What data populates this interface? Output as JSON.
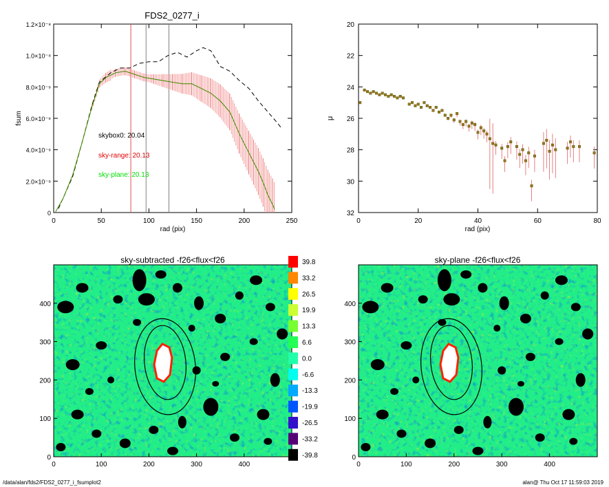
{
  "chart_data": [
    {
      "type": "line",
      "title": "FDS2_0277_i",
      "xlabel": "rad (pix)",
      "ylabel": "fsum",
      "xlim": [
        0,
        250
      ],
      "ylim": [
        0,
        1.2e-08
      ],
      "x_ticks": [
        "0",
        "50",
        "100",
        "150",
        "200",
        "250"
      ],
      "x_tick_values": [
        0,
        50,
        100,
        150,
        200,
        250
      ],
      "y_ticks": [
        "0",
        "2.0×10⁻⁹",
        "4.0×10⁻⁹",
        "6.0×10⁻⁹",
        "8.0×10⁻⁹",
        "1.0×10⁻⁸",
        "1.2×10⁻⁸"
      ],
      "y_tick_values": [
        0,
        2e-09,
        4e-09,
        6e-09,
        8e-09,
        1e-08,
        1.2e-08
      ],
      "vertical_lines": [
        {
          "x": 81,
          "color": "#e05050"
        },
        {
          "x": 97,
          "color": "#808080"
        },
        {
          "x": 121,
          "color": "#808080"
        }
      ],
      "annotations": [
        {
          "text": "skybox0: 20.04",
          "color": "#000000"
        },
        {
          "text": "sky-range: 20.13",
          "color": "#e00000"
        },
        {
          "text": "sky-plane: 20.13",
          "color": "#00dd00"
        }
      ],
      "series": [
        {
          "style": "dashed",
          "color": "#000000",
          "x": [
            5,
            20,
            30,
            40,
            48,
            60,
            70,
            80,
            90,
            100,
            110,
            120,
            130,
            140,
            150,
            157,
            165,
            175,
            185,
            195,
            205,
            215,
            225,
            235,
            240
          ],
          "values": [
            2.5e-10,
            2.3e-09,
            4.5e-09,
            6.8e-09,
            8.3e-09,
            8.9e-09,
            9.2e-09,
            9.2e-09,
            9.5e-09,
            9.6e-09,
            9.6e-09,
            1e-08,
            1.02e-08,
            9.9e-09,
            1.03e-08,
            1.05e-08,
            1.03e-08,
            9.3e-09,
            9e-09,
            8.4e-09,
            7.9e-09,
            7.1e-09,
            6.4e-09,
            5.7e-09,
            5.3e-09
          ]
        },
        {
          "style": "solid",
          "color": "#a06000",
          "x": [
            2,
            10,
            20,
            30,
            40,
            48,
            55,
            65,
            75,
            85,
            95,
            105,
            115,
            125,
            135,
            145,
            155,
            165,
            175,
            185,
            195,
            205,
            210,
            215,
            220,
            225,
            230,
            232
          ],
          "values": [
            5e-11,
            9e-10,
            2.4e-09,
            4.5e-09,
            6.7e-09,
            8.2e-09,
            8.6e-09,
            8.9e-09,
            9e-09,
            8.8e-09,
            8.6e-09,
            8.5e-09,
            8.4e-09,
            8.3e-09,
            8.2e-09,
            8.2e-09,
            7.9e-09,
            7.6e-09,
            7.1e-09,
            6.4e-09,
            5e-09,
            3.8e-09,
            3.2e-09,
            2.6e-09,
            1.9e-09,
            1.1e-09,
            5e-10,
            2e-10
          ]
        }
      ]
    },
    {
      "type": "scatter",
      "xlabel": "rad (pix)",
      "ylabel": "μ",
      "xlim": [
        0,
        80
      ],
      "ylim": [
        32,
        20
      ],
      "x_ticks": [
        "0",
        "20",
        "40",
        "60",
        "80"
      ],
      "x_tick_values": [
        0,
        20,
        40,
        60,
        80
      ],
      "y_ticks": [
        "20",
        "22",
        "24",
        "26",
        "28",
        "30",
        "32"
      ],
      "y_tick_values": [
        20,
        22,
        24,
        26,
        28,
        30,
        32
      ],
      "series": [
        {
          "x": [
            0.5,
            2,
            3,
            4,
            5,
            6,
            7,
            8,
            9,
            10,
            11,
            12,
            13,
            14,
            15,
            17,
            18,
            19,
            20,
            21,
            22,
            23,
            24,
            25,
            26,
            27,
            28,
            29,
            30,
            31,
            32,
            33,
            34,
            35,
            36,
            37,
            38,
            39,
            40,
            41,
            42,
            43,
            44,
            45,
            46,
            48,
            49,
            50,
            51,
            53,
            54,
            55,
            56,
            57,
            58,
            59,
            62,
            63,
            64,
            65,
            66,
            70,
            71,
            72,
            74,
            79
          ],
          "values": [
            25.0,
            24.2,
            24.3,
            24.4,
            24.3,
            24.4,
            24.5,
            24.4,
            24.5,
            24.6,
            24.5,
            24.6,
            24.7,
            24.6,
            24.7,
            25.1,
            25.0,
            25.2,
            25.1,
            25.3,
            25.0,
            25.2,
            25.3,
            25.5,
            25.3,
            25.6,
            25.5,
            25.8,
            26.0,
            25.8,
            26.1,
            25.7,
            26.2,
            26.4,
            26.2,
            26.5,
            26.3,
            26.4,
            26.9,
            26.6,
            26.8,
            27.0,
            27.3,
            27.6,
            27.7,
            27.9,
            28.7,
            27.8,
            27.5,
            27.8,
            28.3,
            28.0,
            28.7,
            28.2,
            30.3,
            28.4,
            27.6,
            27.4,
            28.1,
            27.7,
            28.0,
            27.9,
            27.5,
            27.8,
            27.8,
            28.2
          ]
        }
      ]
    },
    {
      "type": "heatmap",
      "title": "sky-subtracted -f26<flux<f26",
      "xlim": [
        0,
        500
      ],
      "ylim": [
        0,
        500
      ],
      "x_ticks": [
        "0",
        "100",
        "200",
        "300",
        "400"
      ],
      "y_ticks": [
        "0",
        "100",
        "200",
        "300",
        "400"
      ]
    },
    {
      "type": "heatmap",
      "title": "sky-plane -f26<flux<f26",
      "xlim": [
        0,
        500
      ],
      "ylim": [
        0,
        500
      ],
      "x_ticks": [
        "0",
        "100",
        "200",
        "300",
        "400"
      ],
      "y_ticks": [
        "0",
        "100",
        "200",
        "300",
        "400"
      ]
    }
  ],
  "colorbar": {
    "levels": [
      "39.8",
      "33.2",
      "26.5",
      "19.9",
      "13.3",
      "6.6",
      "0.0",
      "-6.6",
      "-13.3",
      "-19.9",
      "-26.5",
      "-33.2",
      "-39.8"
    ],
    "colors": [
      "#ff0000",
      "#ff8800",
      "#ffff00",
      "#ccff33",
      "#77ff33",
      "#22ff55",
      "#22ffaa",
      "#00ffee",
      "#00aaff",
      "#0055ff",
      "#3311cc",
      "#550077",
      "#000000"
    ]
  },
  "footer": {
    "path": "/data/alan/fds2/FDS2_0277_i_fsumplot2",
    "stamp": "alan@  Thu Oct 17 11:59:03 2019"
  }
}
